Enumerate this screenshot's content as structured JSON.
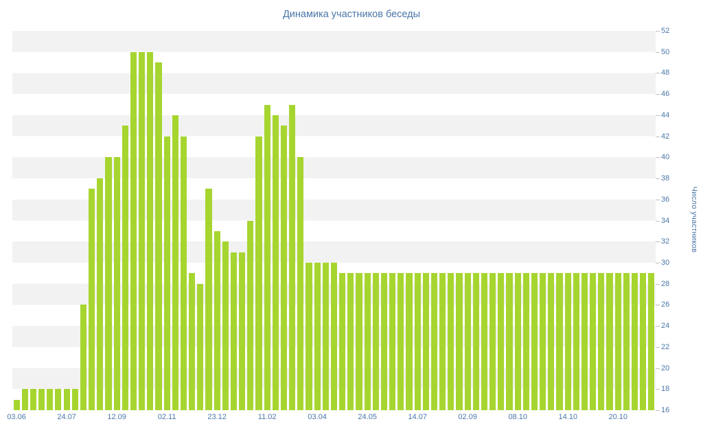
{
  "title": "Динамика участников беседы",
  "colors": {
    "bar": "#a6d530",
    "stripe": "#f2f2f2",
    "axis_text": "#4a76a8",
    "tick": "#c0c0c0",
    "background": "#ffffff"
  },
  "chart_data": {
    "type": "bar",
    "title": "Динамика участников беседы",
    "xlabel": "",
    "ylabel": "Число участников",
    "ylim": [
      16,
      52
    ],
    "y_tick_step": 2,
    "y_tick_labels": [
      52,
      50,
      48,
      46,
      44,
      42,
      40,
      38,
      36,
      34,
      32,
      30,
      28,
      26,
      24,
      22,
      20,
      18,
      16
    ],
    "y_axis_position": "right",
    "grid": "striped-horizontal-bands",
    "legend": "none",
    "x_tick_label_every": 6,
    "x_tick_labels": [
      "03.06",
      "24.07",
      "12.09",
      "02.11",
      "23.12",
      "11.02",
      "03.04",
      "24.05",
      "14.07",
      "02.09",
      "08.10",
      "14.10",
      "20.10"
    ],
    "values": [
      17,
      18,
      18,
      18,
      18,
      18,
      18,
      18,
      26,
      37,
      38,
      40,
      40,
      43,
      50,
      50,
      50,
      49,
      42,
      44,
      42,
      29,
      28,
      37,
      33,
      32,
      31,
      31,
      34,
      42,
      45,
      44,
      43,
      45,
      40,
      30,
      30,
      30,
      30,
      29,
      29,
      29,
      29,
      29,
      29,
      29,
      29,
      29,
      29,
      29,
      29,
      29,
      29,
      29,
      29,
      29,
      29,
      29,
      29,
      29,
      29,
      29,
      29,
      29,
      29,
      29,
      29,
      29,
      29,
      29,
      29,
      29,
      29,
      29,
      29,
      29,
      29
    ]
  }
}
